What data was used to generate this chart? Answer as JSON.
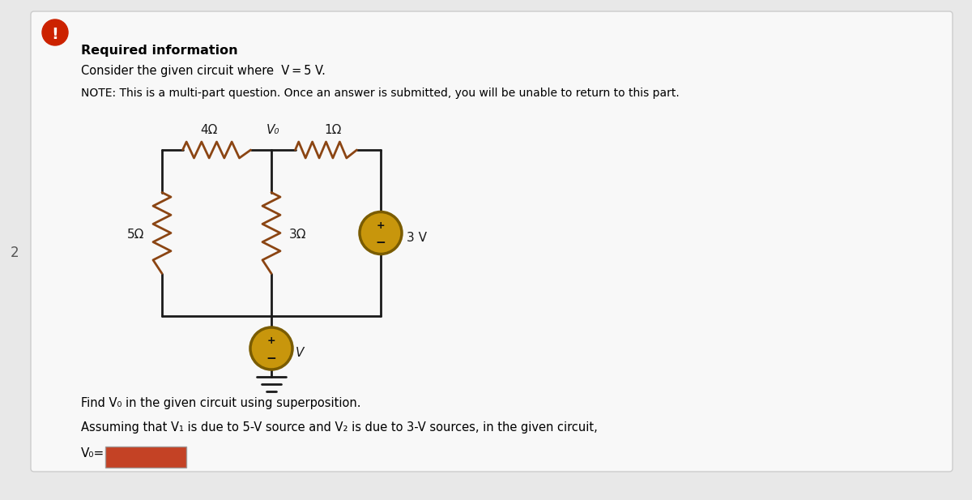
{
  "bg_color": "#e8e8e8",
  "panel_color": "#f8f8f8",
  "panel_edge": "#cccccc",
  "text_color": "#000000",
  "title_bold": "Required information",
  "line1": "Consider the given circuit where  V = 5 V.",
  "note_line": "NOTE: This is a multi-part question. Once an answer is submitted, you will be unable to return to this part.",
  "find_line": "Find V₀ in the given circuit using superposition.",
  "assume_line": "Assuming that V₁ is due to 5-V source and V₂ is due to 3-V sources, in the given circuit,",
  "vo_label": "V₀=",
  "wire_color": "#1a1a1a",
  "resistor_color": "#8B4513",
  "source_fill": "#C8960C",
  "source_edge": "#7a5c00",
  "label_color": "#1a1a1a",
  "number_label": "2",
  "exclamation_fill": "#cc2200",
  "r4_label": "4Ω",
  "r1_label": "1Ω",
  "r3_label": "3Ω",
  "r5_label": "5Ω",
  "v_label": "V",
  "v3_label": "3 V",
  "vo_node_label": "V₀",
  "ans_box_color": "#bb2200"
}
